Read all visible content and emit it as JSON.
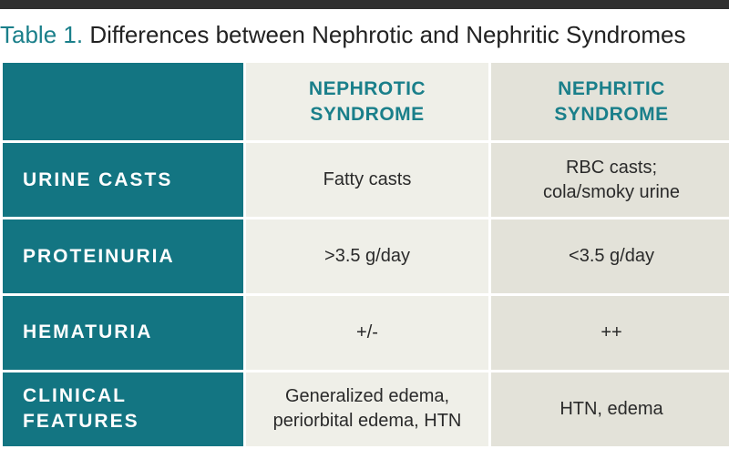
{
  "caption": {
    "label": "Table 1.",
    "title": "Differences between Nephrotic and Nephritic Syndromes"
  },
  "columns": [
    {
      "line1": "NEPHROTIC",
      "line2": "SYNDROME"
    },
    {
      "line1": "NEPHRITIC",
      "line2": "SYNDROME"
    }
  ],
  "rows": [
    {
      "header": {
        "line1": "URINE CASTS",
        "line2": ""
      },
      "nephrotic": {
        "line1": "Fatty casts",
        "line2": ""
      },
      "nephritic": {
        "line1": "RBC casts;",
        "line2": "cola/smoky urine"
      }
    },
    {
      "header": {
        "line1": "PROTEINURIA",
        "line2": ""
      },
      "nephrotic": {
        "line1": ">3.5 g/day",
        "line2": ""
      },
      "nephritic": {
        "line1": "<3.5 g/day",
        "line2": ""
      }
    },
    {
      "header": {
        "line1": "HEMATURIA",
        "line2": ""
      },
      "nephrotic": {
        "line1": "+/-",
        "line2": ""
      },
      "nephritic": {
        "line1": "++",
        "line2": ""
      }
    },
    {
      "header": {
        "line1": "CLINICAL",
        "line2": "FEATURES"
      },
      "nephrotic": {
        "line1": "Generalized edema,",
        "line2": "periorbital edema, HTN"
      },
      "nephritic": {
        "line1": "HTN, edema",
        "line2": ""
      }
    }
  ],
  "colors": {
    "teal": "#137582",
    "teal_text": "#1a7f8a",
    "nephrotic_bg": "#efefe8",
    "nephritic_bg": "#e3e2d9"
  }
}
